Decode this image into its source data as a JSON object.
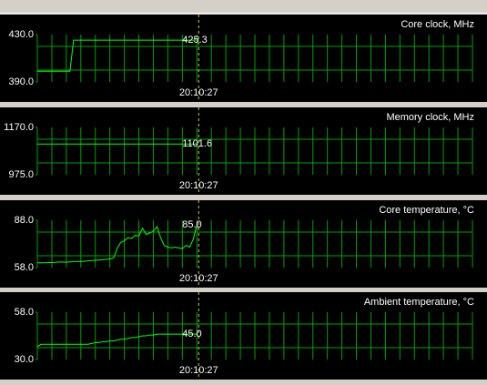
{
  "chart_data": [
    {
      "type": "line",
      "title": "Core clock, MHz",
      "color": "#00ff00",
      "ylim": [
        390,
        430
      ],
      "yticks": [
        {
          "value": 390,
          "label": "390.0"
        },
        {
          "value": 430,
          "label": "430.0"
        }
      ],
      "xlim": [
        0,
        120
      ],
      "x": [
        0,
        1,
        2,
        3,
        4,
        5,
        6,
        7,
        8,
        9,
        10,
        11,
        12,
        13,
        14,
        15,
        16,
        17,
        18,
        19,
        20,
        21,
        22,
        23,
        24,
        25,
        26,
        27,
        28,
        29,
        30,
        31,
        32,
        33,
        34,
        35,
        36,
        37,
        38,
        39,
        40,
        41,
        42,
        43,
        44
      ],
      "values": [
        399,
        399,
        399,
        399,
        399,
        399,
        399,
        399,
        399,
        399,
        425.3,
        425.3,
        425.3,
        425.3,
        425.3,
        425.3,
        425.3,
        425.3,
        425.3,
        425.3,
        425.3,
        425.3,
        425.3,
        425.3,
        425.3,
        425.3,
        425.3,
        425.3,
        425.3,
        425.3,
        425.3,
        425.3,
        425.3,
        425.3,
        425.3,
        425.3,
        425.3,
        425.3,
        425.3,
        425.3,
        425.3,
        425.3,
        425.3,
        425.3,
        425.3
      ],
      "cursor_value_label": "425.3",
      "cursor_time": "20:10:27"
    },
    {
      "type": "line",
      "title": "Memory clock, MHz",
      "color": "#00ff00",
      "ylim": [
        975,
        1170
      ],
      "yticks": [
        {
          "value": 975,
          "label": "975.0"
        },
        {
          "value": 1170,
          "label": "1170.0"
        }
      ],
      "xlim": [
        0,
        120
      ],
      "x": [
        0,
        1,
        2,
        3,
        4,
        5,
        6,
        7,
        8,
        9,
        10,
        11,
        12,
        13,
        14,
        15,
        16,
        17,
        18,
        19,
        20,
        21,
        22,
        23,
        24,
        25,
        26,
        27,
        28,
        29,
        30,
        31,
        32,
        33,
        34,
        35,
        36,
        37,
        38,
        39,
        40,
        41,
        42,
        43,
        44
      ],
      "values": [
        1101.6,
        1101.6,
        1101.6,
        1101.6,
        1101.6,
        1101.6,
        1101.6,
        1101.6,
        1101.6,
        1101.6,
        1101.6,
        1101.6,
        1101.6,
        1101.6,
        1101.6,
        1101.6,
        1101.6,
        1101.6,
        1101.6,
        1101.6,
        1101.6,
        1101.6,
        1101.6,
        1101.6,
        1101.6,
        1101.6,
        1101.6,
        1101.6,
        1101.6,
        1101.6,
        1101.6,
        1101.6,
        1101.6,
        1101.6,
        1101.6,
        1101.6,
        1101.6,
        1101.6,
        1101.6,
        1101.6,
        1101.6,
        1101.6,
        1101.6,
        1101.6,
        1101.6
      ],
      "cursor_value_label": "1101.6",
      "cursor_time": "20:10:27"
    },
    {
      "type": "line",
      "title": "Core temperature, °C",
      "color": "#00ff00",
      "ylim": [
        58,
        88
      ],
      "yticks": [
        {
          "value": 58,
          "label": "58.0"
        },
        {
          "value": 88,
          "label": "88.0"
        }
      ],
      "xlim": [
        0,
        120
      ],
      "x": [
        0,
        1,
        2,
        3,
        4,
        5,
        6,
        7,
        8,
        9,
        10,
        11,
        12,
        13,
        14,
        15,
        16,
        17,
        18,
        19,
        20,
        21,
        22,
        23,
        24,
        25,
        26,
        27,
        28,
        29,
        30,
        31,
        32,
        33,
        34,
        35,
        36,
        37,
        38,
        39,
        40,
        41,
        42,
        43,
        44
      ],
      "values": [
        61,
        61,
        61,
        61.2,
        61.2,
        61.3,
        61.5,
        61.5,
        61.4,
        61.6,
        61.8,
        61.8,
        62,
        62,
        62.3,
        62.5,
        62.6,
        62.8,
        63,
        63.2,
        63.5,
        64,
        70,
        74,
        75,
        77,
        76.5,
        78.5,
        78,
        83,
        79,
        80,
        81,
        84,
        77,
        72,
        71,
        70.5,
        71,
        70.5,
        70,
        72,
        71,
        76,
        85
      ],
      "cursor_value_label": "85.0",
      "cursor_time": "20:10:27"
    },
    {
      "type": "line",
      "title": "Ambient temperature, °C",
      "color": "#00ff00",
      "ylim": [
        30,
        58
      ],
      "yticks": [
        {
          "value": 30,
          "label": "30.0"
        },
        {
          "value": 58,
          "label": "58.0"
        }
      ],
      "xlim": [
        0,
        120
      ],
      "x": [
        0,
        1,
        2,
        3,
        4,
        5,
        6,
        7,
        8,
        9,
        10,
        11,
        12,
        13,
        14,
        15,
        16,
        17,
        18,
        19,
        20,
        21,
        22,
        23,
        24,
        25,
        26,
        27,
        28,
        29,
        30,
        31,
        32,
        33,
        34,
        35,
        36,
        37,
        38,
        39,
        40,
        41,
        42,
        43,
        44
      ],
      "values": [
        37.5,
        39,
        39,
        39,
        39,
        39,
        39,
        39,
        39,
        39,
        39,
        39,
        39,
        39,
        39,
        39.5,
        40,
        40,
        40.5,
        40.5,
        41,
        41,
        41.5,
        42,
        42,
        42.5,
        43,
        43,
        43.5,
        44,
        44,
        44.5,
        44.5,
        45,
        45,
        45,
        45,
        45,
        45,
        45,
        45,
        45,
        45,
        45,
        45
      ],
      "cursor_value_label": "45.0",
      "cursor_time": "20:10:27"
    }
  ]
}
